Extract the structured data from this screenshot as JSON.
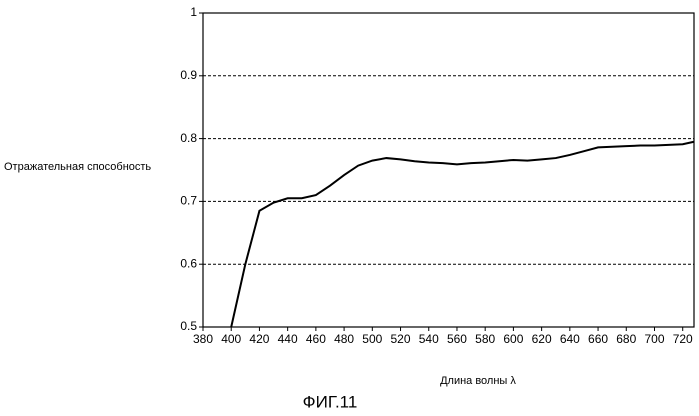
{
  "chart_data": {
    "type": "line",
    "ylabel": "Отражательная способность",
    "xlabel": "Длина волны λ",
    "caption": "ФИГ.11",
    "x": [
      400,
      410,
      420,
      430,
      440,
      450,
      460,
      470,
      480,
      490,
      500,
      510,
      520,
      530,
      540,
      550,
      560,
      570,
      580,
      590,
      600,
      610,
      620,
      630,
      640,
      650,
      660,
      670,
      680,
      690,
      700,
      710,
      720,
      728
    ],
    "series": [
      {
        "color": "#000000",
        "values": [
          0.5,
          0.6,
          0.685,
          0.698,
          0.705,
          0.705,
          0.71,
          0.725,
          0.742,
          0.757,
          0.765,
          0.769,
          0.767,
          0.764,
          0.762,
          0.761,
          0.759,
          0.761,
          0.762,
          0.764,
          0.766,
          0.765,
          0.767,
          0.769,
          0.774,
          0.78,
          0.786,
          0.787,
          0.788,
          0.789,
          0.789,
          0.79,
          0.791,
          0.795
        ]
      }
    ],
    "xlim": [
      380,
      728
    ],
    "xticks": [
      380,
      400,
      420,
      440,
      460,
      480,
      500,
      520,
      540,
      560,
      580,
      600,
      620,
      640,
      660,
      680,
      700,
      720
    ],
    "ylim": [
      0.5,
      1
    ],
    "yticks": [
      0.5,
      0.6,
      0.7,
      0.8,
      0.9,
      1
    ],
    "grid": true
  }
}
